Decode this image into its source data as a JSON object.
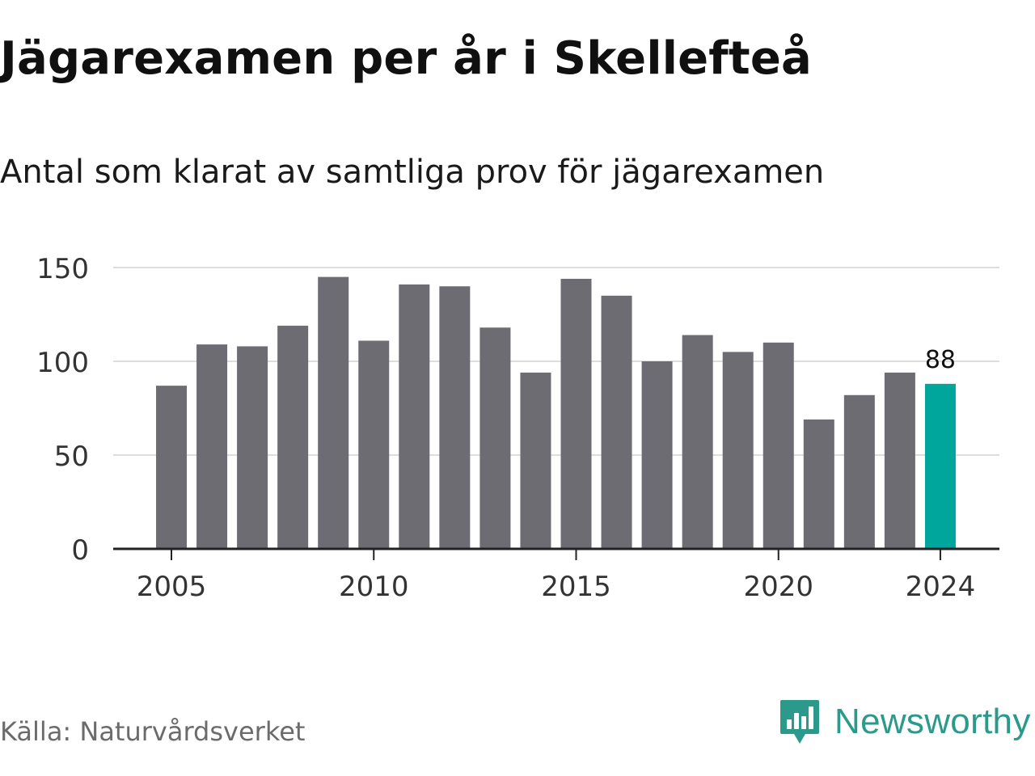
{
  "title": "Jägarexamen per år i Skellefteå",
  "subtitle": "Antal som klarat av samtliga prov för jägarexamen",
  "source": "Källa: Naturvårdsverket",
  "brand": {
    "name": "Newsworthy",
    "icon": "newsworthy-logo-icon",
    "color": "#2b9a8a"
  },
  "colors": {
    "bar": "#6d6c72",
    "highlight": "#00a59b",
    "grid": "#dddddd",
    "axis": "#222222",
    "tick_text": "#333333"
  },
  "chart_data": {
    "type": "bar",
    "categories": [
      "2005",
      "2006",
      "2007",
      "2008",
      "2009",
      "2010",
      "2011",
      "2012",
      "2013",
      "2014",
      "2015",
      "2016",
      "2017",
      "2018",
      "2019",
      "2020",
      "2021",
      "2022",
      "2023",
      "2024"
    ],
    "values": [
      87,
      109,
      108,
      119,
      145,
      111,
      141,
      140,
      118,
      94,
      144,
      135,
      100,
      114,
      105,
      110,
      69,
      82,
      94,
      88
    ],
    "highlight_category": "2024",
    "highlight_label": "88",
    "x_tick_labels": [
      "2005",
      "2010",
      "2015",
      "2020",
      "2024"
    ],
    "y_ticks": [
      0,
      50,
      100,
      150
    ],
    "y_tick_labels": [
      "0",
      "50",
      "100",
      "150"
    ],
    "ylim": [
      0,
      150
    ],
    "xlabel": "",
    "ylabel": "",
    "grid": true
  }
}
